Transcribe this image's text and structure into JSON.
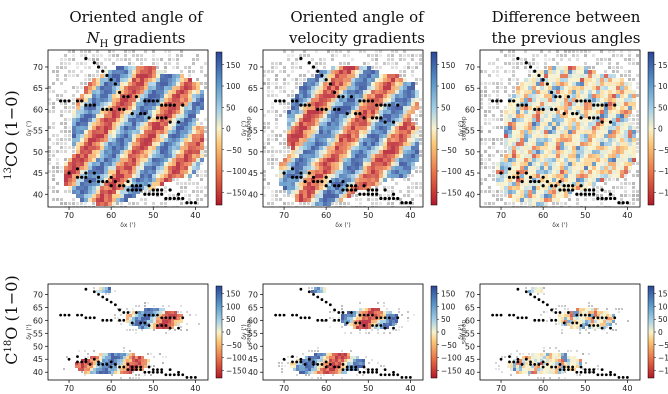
{
  "figure": {
    "column_titles": [
      {
        "line1": "Oriented angle of",
        "line2_var": "N",
        "line2_sub": "H",
        "line2_rest": " gradients"
      },
      {
        "line1": "Oriented angle of",
        "line2": "velocity gradients"
      },
      {
        "line1": "Difference between",
        "line2": "the previous angles"
      }
    ],
    "row_labels": [
      {
        "sup": "13",
        "main": "CO (1−0)"
      },
      {
        "sup": "18",
        "main": "O (1−0)",
        "prefix": "C"
      }
    ],
    "axes": {
      "xlabel": "δx (')",
      "ylabel": "δy (')",
      "xticks": [
        70,
        60,
        50,
        40
      ],
      "yticks": [
        70,
        65,
        60,
        55,
        50,
        45,
        40
      ],
      "xlim": [
        75,
        37
      ],
      "ylim": [
        37,
        74
      ]
    },
    "colorbar": {
      "label": "degrees",
      "ticks": [
        150,
        100,
        50,
        0,
        -50,
        -100,
        -150
      ],
      "tick_labels": [
        "150",
        "100",
        "50",
        "0",
        "−50",
        "−100",
        "−150"
      ],
      "cmap_top": "#2c4f9a",
      "cmap_mid": "#f4f0c6",
      "cmap_bottom": "#b21e2a"
    }
  },
  "chart_data": {
    "type": "scatter",
    "title": "",
    "xlabel": "δx (')",
    "ylabel": "δy (')",
    "xlim": [
      75,
      37
    ],
    "ylim": [
      37,
      74
    ],
    "grid": false,
    "series": [
      {
        "x": [
          66,
          64,
          63,
          62,
          61,
          60,
          59,
          58,
          57,
          56,
          54,
          52,
          51,
          50,
          49,
          48,
          47,
          46,
          45,
          43,
          72,
          71,
          70,
          68,
          67,
          66,
          65,
          64,
          62,
          61,
          60,
          58,
          57,
          55,
          53,
          52,
          51,
          49,
          48,
          47,
          46,
          44,
          68,
          66,
          64,
          63,
          60,
          59,
          56,
          55,
          54,
          53,
          51,
          50,
          49,
          48,
          46,
          44,
          70,
          68,
          67,
          66,
          65,
          63,
          62,
          61,
          60,
          58,
          57,
          56,
          55,
          54,
          53,
          52,
          51,
          50,
          49,
          48,
          47,
          46,
          45,
          44,
          43,
          42,
          41,
          40
        ],
        "y": [
          72,
          71,
          70,
          69,
          68,
          67,
          66,
          64,
          63,
          63,
          63,
          62,
          62,
          62,
          62,
          61,
          61,
          61,
          61,
          61,
          62,
          62,
          62,
          62,
          62,
          61,
          61,
          61,
          60,
          60,
          60,
          60,
          60,
          59,
          59,
          59,
          58,
          58,
          58,
          58,
          57,
          57,
          46,
          45,
          45,
          44,
          44,
          43,
          43,
          42,
          42,
          42,
          42,
          41,
          41,
          41,
          41,
          40,
          45,
          44,
          44,
          44,
          43,
          43,
          43,
          43,
          42,
          42,
          42,
          41,
          41,
          41,
          41,
          40,
          40,
          40,
          40,
          40,
          39,
          39,
          39,
          39,
          39,
          38,
          38,
          38
        ]
      }
    ]
  }
}
